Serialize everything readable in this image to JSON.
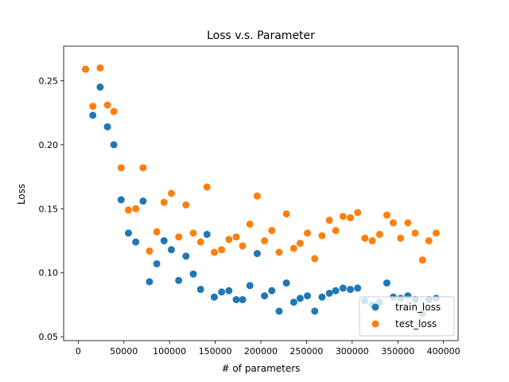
{
  "chart_data": {
    "type": "scatter",
    "title": "Loss v.s. Parameter",
    "xlabel": "# of parameters",
    "ylabel": "Loss",
    "xlim": [
      -16000,
      416000
    ],
    "ylim": [
      0.047,
      0.277
    ],
    "xticks": [
      0,
      50000,
      100000,
      150000,
      200000,
      250000,
      300000,
      350000,
      400000
    ],
    "yticks": [
      0.05,
      0.1,
      0.15,
      0.2,
      0.25
    ],
    "ytick_labels": [
      "0.05",
      "0.10",
      "0.15",
      "0.20",
      "0.25"
    ],
    "legend_position": "lower-right",
    "grid": false,
    "series": [
      {
        "name": "train_loss",
        "color": "#1f77b4",
        "points": [
          [
            8000,
            0.259
          ],
          [
            16000,
            0.223
          ],
          [
            24000,
            0.245
          ],
          [
            32000,
            0.214
          ],
          [
            39000,
            0.2
          ],
          [
            47000,
            0.157
          ],
          [
            55000,
            0.131
          ],
          [
            63000,
            0.124
          ],
          [
            71000,
            0.156
          ],
          [
            78000,
            0.093
          ],
          [
            86000,
            0.107
          ],
          [
            94000,
            0.125
          ],
          [
            102000,
            0.118
          ],
          [
            110000,
            0.094
          ],
          [
            118000,
            0.113
          ],
          [
            126000,
            0.099
          ],
          [
            134000,
            0.087
          ],
          [
            141000,
            0.13
          ],
          [
            149000,
            0.081
          ],
          [
            157000,
            0.085
          ],
          [
            165000,
            0.086
          ],
          [
            173000,
            0.079
          ],
          [
            180000,
            0.079
          ],
          [
            188000,
            0.09
          ],
          [
            196000,
            0.115
          ],
          [
            204000,
            0.082
          ],
          [
            212000,
            0.086
          ],
          [
            220000,
            0.07
          ],
          [
            228000,
            0.092
          ],
          [
            236000,
            0.077
          ],
          [
            243000,
            0.08
          ],
          [
            251000,
            0.082
          ],
          [
            259000,
            0.07
          ],
          [
            267000,
            0.081
          ],
          [
            275000,
            0.084
          ],
          [
            282000,
            0.086
          ],
          [
            290000,
            0.088
          ],
          [
            298000,
            0.087
          ],
          [
            306000,
            0.088
          ],
          [
            314000,
            0.078
          ],
          [
            322000,
            0.075
          ],
          [
            330000,
            0.077
          ],
          [
            338000,
            0.092
          ],
          [
            345000,
            0.081
          ],
          [
            353000,
            0.08
          ],
          [
            361000,
            0.082
          ],
          [
            369000,
            0.079
          ],
          [
            377000,
            0.068
          ],
          [
            384000,
            0.079
          ],
          [
            392000,
            0.08
          ]
        ]
      },
      {
        "name": "test_loss",
        "color": "#ff7f0e",
        "points": [
          [
            8000,
            0.259
          ],
          [
            16000,
            0.23
          ],
          [
            24000,
            0.26
          ],
          [
            32000,
            0.231
          ],
          [
            39000,
            0.226
          ],
          [
            47000,
            0.182
          ],
          [
            55000,
            0.149
          ],
          [
            63000,
            0.15
          ],
          [
            71000,
            0.182
          ],
          [
            78000,
            0.117
          ],
          [
            86000,
            0.132
          ],
          [
            94000,
            0.155
          ],
          [
            102000,
            0.162
          ],
          [
            110000,
            0.128
          ],
          [
            118000,
            0.153
          ],
          [
            126000,
            0.131
          ],
          [
            134000,
            0.124
          ],
          [
            141000,
            0.167
          ],
          [
            149000,
            0.116
          ],
          [
            157000,
            0.118
          ],
          [
            165000,
            0.126
          ],
          [
            173000,
            0.128
          ],
          [
            180000,
            0.121
          ],
          [
            188000,
            0.138
          ],
          [
            196000,
            0.16
          ],
          [
            204000,
            0.125
          ],
          [
            212000,
            0.133
          ],
          [
            220000,
            0.116
          ],
          [
            228000,
            0.146
          ],
          [
            236000,
            0.119
          ],
          [
            243000,
            0.123
          ],
          [
            251000,
            0.131
          ],
          [
            259000,
            0.111
          ],
          [
            267000,
            0.129
          ],
          [
            275000,
            0.141
          ],
          [
            282000,
            0.133
          ],
          [
            290000,
            0.144
          ],
          [
            298000,
            0.143
          ],
          [
            306000,
            0.147
          ],
          [
            314000,
            0.127
          ],
          [
            322000,
            0.125
          ],
          [
            330000,
            0.13
          ],
          [
            338000,
            0.145
          ],
          [
            345000,
            0.139
          ],
          [
            353000,
            0.127
          ],
          [
            361000,
            0.139
          ],
          [
            369000,
            0.131
          ],
          [
            377000,
            0.11
          ],
          [
            384000,
            0.125
          ],
          [
            392000,
            0.131
          ]
        ]
      }
    ]
  }
}
